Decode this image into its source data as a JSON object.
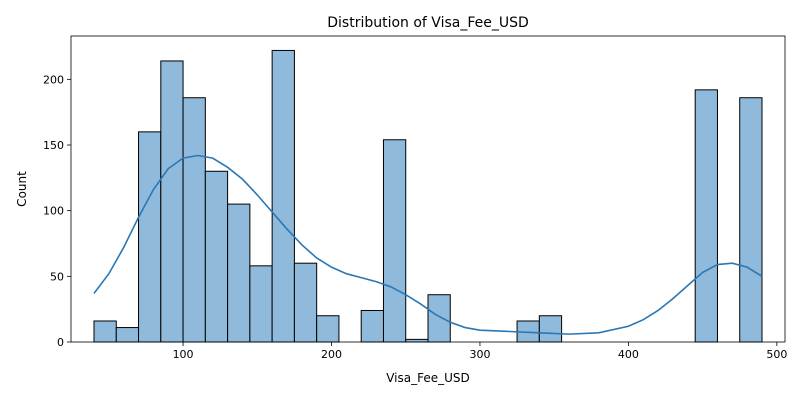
{
  "chart_data": {
    "type": "histogram",
    "title": "Distribution of Visa_Fee_USD",
    "xlabel": "Visa_Fee_USD",
    "ylabel": "Count",
    "xlim": [
      24.5,
      505.5
    ],
    "ylim": [
      0,
      233
    ],
    "xticks": [
      100,
      200,
      300,
      400,
      500
    ],
    "yticks": [
      0,
      50,
      100,
      150,
      200
    ],
    "grid": false,
    "bins": [
      {
        "x0": 40,
        "x1": 55,
        "count": 16
      },
      {
        "x0": 55,
        "x1": 70,
        "count": 11
      },
      {
        "x0": 70,
        "x1": 85,
        "count": 160
      },
      {
        "x0": 85,
        "x1": 100,
        "count": 214
      },
      {
        "x0": 100,
        "x1": 115,
        "count": 186
      },
      {
        "x0": 115,
        "x1": 130,
        "count": 130
      },
      {
        "x0": 130,
        "x1": 145,
        "count": 105
      },
      {
        "x0": 145,
        "x1": 160,
        "count": 58
      },
      {
        "x0": 160,
        "x1": 175,
        "count": 222
      },
      {
        "x0": 175,
        "x1": 190,
        "count": 60
      },
      {
        "x0": 190,
        "x1": 205,
        "count": 20
      },
      {
        "x0": 205,
        "x1": 220,
        "count": 0
      },
      {
        "x0": 220,
        "x1": 235,
        "count": 24
      },
      {
        "x0": 235,
        "x1": 250,
        "count": 154
      },
      {
        "x0": 250,
        "x1": 265,
        "count": 2
      },
      {
        "x0": 265,
        "x1": 280,
        "count": 36
      },
      {
        "x0": 280,
        "x1": 295,
        "count": 0
      },
      {
        "x0": 295,
        "x1": 310,
        "count": 0
      },
      {
        "x0": 310,
        "x1": 325,
        "count": 0
      },
      {
        "x0": 325,
        "x1": 340,
        "count": 16
      },
      {
        "x0": 340,
        "x1": 355,
        "count": 20
      },
      {
        "x0": 355,
        "x1": 370,
        "count": 0
      },
      {
        "x0": 370,
        "x1": 385,
        "count": 0
      },
      {
        "x0": 385,
        "x1": 400,
        "count": 0
      },
      {
        "x0": 400,
        "x1": 415,
        "count": 0
      },
      {
        "x0": 415,
        "x1": 430,
        "count": 0
      },
      {
        "x0": 430,
        "x1": 445,
        "count": 0
      },
      {
        "x0": 445,
        "x1": 460,
        "count": 192
      },
      {
        "x0": 460,
        "x1": 475,
        "count": 0
      },
      {
        "x0": 475,
        "x1": 490,
        "count": 186
      }
    ],
    "kde": {
      "x": [
        40,
        50,
        60,
        70,
        80,
        90,
        100,
        110,
        120,
        130,
        140,
        150,
        160,
        170,
        180,
        190,
        200,
        210,
        220,
        230,
        240,
        250,
        260,
        270,
        280,
        290,
        300,
        320,
        340,
        360,
        380,
        400,
        410,
        420,
        430,
        440,
        450,
        460,
        470,
        480,
        490
      ],
      "y": [
        37,
        52,
        72,
        95,
        116,
        132,
        140,
        142,
        140,
        133,
        124,
        112,
        99,
        86,
        74,
        64,
        57,
        52,
        49,
        46,
        42,
        36,
        29,
        21,
        15,
        11,
        9,
        8,
        7,
        6,
        7,
        12,
        17,
        24,
        33,
        43,
        53,
        59,
        60,
        57,
        50
      ]
    }
  }
}
